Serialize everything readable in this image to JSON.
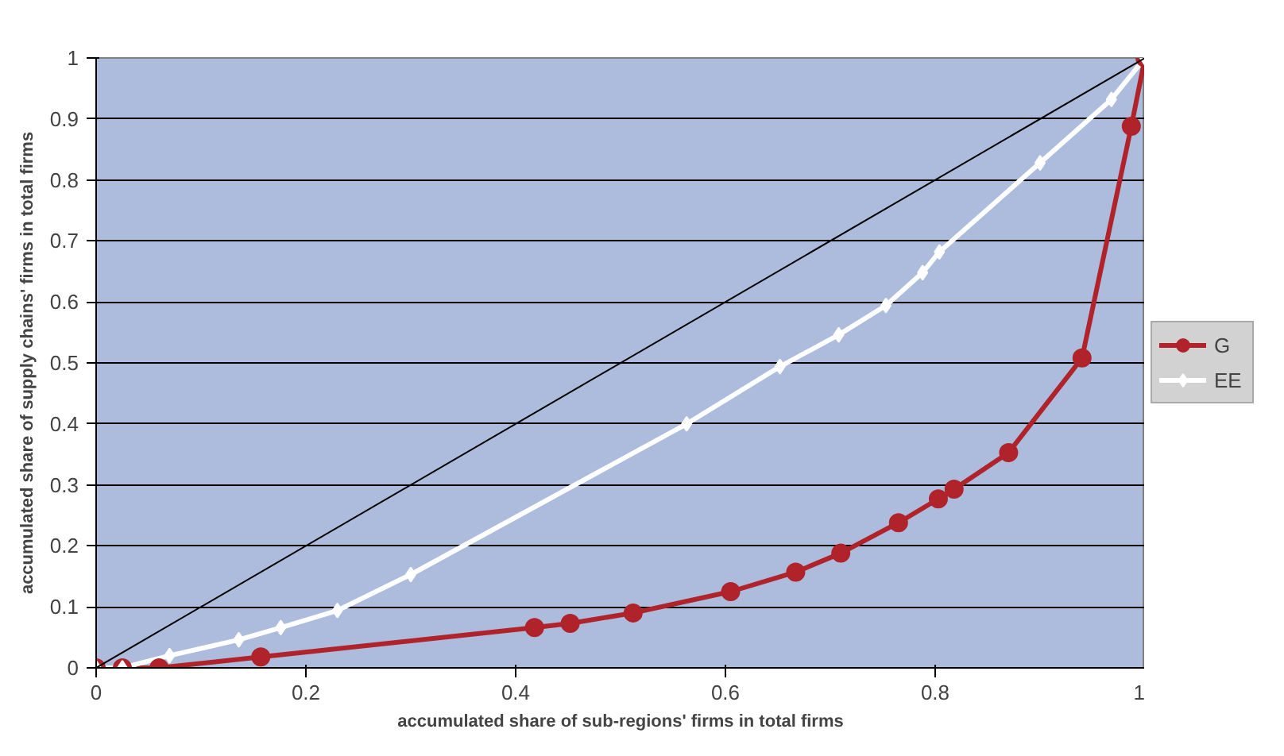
{
  "chart_data": {
    "type": "line",
    "xlabel": "accumulated share of sub-regions' firms in total firms",
    "ylabel": "accumulated share of supply chains' firms in total firms",
    "xlim": [
      0,
      1
    ],
    "ylim": [
      0,
      1
    ],
    "xticks": [
      0,
      0.2,
      0.4,
      0.6,
      0.8,
      1
    ],
    "yticks": [
      0,
      0.1,
      0.2,
      0.3,
      0.4,
      0.5,
      0.6,
      0.7,
      0.8,
      0.9,
      1
    ],
    "grid": "y",
    "legend": "right",
    "series": [
      {
        "name": "G",
        "color": "#b0232a",
        "marker": "circle",
        "x": [
          0,
          0.025,
          0.06,
          0.157,
          0.418,
          0.452,
          0.512,
          0.605,
          0.667,
          0.71,
          0.765,
          0.803,
          0.818,
          0.87,
          0.94,
          0.987,
          1
        ],
        "values": [
          0,
          0,
          0,
          0.018,
          0.066,
          0.073,
          0.09,
          0.125,
          0.157,
          0.188,
          0.238,
          0.277,
          0.293,
          0.353,
          0.508,
          0.888,
          1
        ]
      },
      {
        "name": "EE",
        "color": "#ffffff",
        "marker": "diamond",
        "x": [
          0,
          0.025,
          0.07,
          0.136,
          0.176,
          0.23,
          0.3,
          0.563,
          0.652,
          0.708,
          0.753,
          0.788,
          0.804,
          0.9,
          0.968,
          1
        ],
        "values": [
          0,
          0,
          0.02,
          0.046,
          0.066,
          0.094,
          0.153,
          0.4,
          0.494,
          0.546,
          0.594,
          0.648,
          0.682,
          0.828,
          0.932,
          1
        ]
      },
      {
        "color": "#000000",
        "marker": "none",
        "x": [
          0,
          1
        ],
        "values": [
          0,
          1
        ]
      }
    ]
  }
}
